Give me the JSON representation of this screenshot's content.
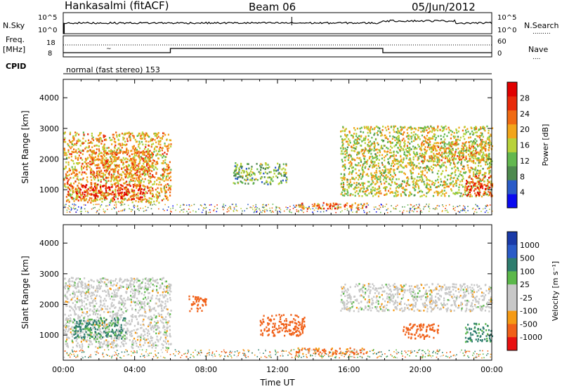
{
  "header": {
    "station": "Hankasalmi (fitACF)",
    "beam": "Beam 06",
    "date": "05/Jun/2012"
  },
  "strip_labels": {
    "nsky": "N.Sky",
    "nsky_ticks": [
      "10^5",
      "10^0"
    ],
    "nsearch": "N.Search",
    "nsearch_ticks": [
      "10^5",
      "10^0"
    ],
    "freq": "Freq.",
    "freq_unit": "[MHz]",
    "freq_ticks": [
      "18",
      "8"
    ],
    "nave": "Nave",
    "nave_ticks": [
      "60",
      "0"
    ],
    "cpid": "CPID",
    "cpid_value": "normal (fast stereo) 153"
  },
  "colors": {
    "power": [
      "#0a0af0",
      "#2a5bc8",
      "#4e8a4e",
      "#63b84f",
      "#b8d23a",
      "#f2a51a",
      "#f06a12",
      "#e82a0a",
      "#e00000"
    ],
    "velocity": [
      "#e81010",
      "#f06018",
      "#f59a14",
      "#f5b82a",
      "#c8c8c8",
      "#c8c8c8",
      "#5bb84a",
      "#2e7d6e",
      "#2a5bc8",
      "#1a3aa8"
    ]
  },
  "chart_data": [
    {
      "type": "heatmap",
      "title": "",
      "xlabel": "",
      "ylabel": "Slant Range [km]",
      "xlim": [
        "00:00",
        "24:00"
      ],
      "x_ticks": [
        "00:00",
        "04:00",
        "08:00",
        "12:00",
        "16:00",
        "20:00",
        "00:00"
      ],
      "ylim": [
        180,
        4600
      ],
      "y_ticks": [
        1000,
        2000,
        3000,
        4000
      ],
      "colorbar_label": "Power [dB]",
      "colorbar_ticks": [
        "4",
        "8",
        "12",
        "16",
        "20",
        "24",
        "28"
      ],
      "echo_regions": [
        {
          "t0": 0.0,
          "t1": 6.0,
          "r0": 600,
          "r1": 2900,
          "level": 20
        },
        {
          "t0": 0.2,
          "t1": 4.5,
          "r0": 700,
          "r1": 1200,
          "level": 28
        },
        {
          "t0": 1.5,
          "t1": 5.0,
          "r0": 1400,
          "r1": 2300,
          "level": 22
        },
        {
          "t0": 9.5,
          "t1": 12.5,
          "r0": 1200,
          "r1": 1900,
          "level": 12
        },
        {
          "t0": 13.0,
          "t1": 17.0,
          "r0": 400,
          "r1": 600,
          "level": 24
        },
        {
          "t0": 15.5,
          "t1": 24.0,
          "r0": 800,
          "r1": 3100,
          "level": 16
        },
        {
          "t0": 20.0,
          "t1": 24.0,
          "r0": 1900,
          "r1": 2600,
          "level": 20
        },
        {
          "t0": 22.5,
          "t1": 24.0,
          "r0": 800,
          "r1": 1500,
          "level": 28
        }
      ]
    },
    {
      "type": "heatmap",
      "title": "",
      "xlabel": "Time UT",
      "ylabel": "Slant Range [km]",
      "xlim": [
        "00:00",
        "24:00"
      ],
      "x_ticks": [
        "00:00",
        "04:00",
        "08:00",
        "12:00",
        "16:00",
        "20:00",
        "00:00"
      ],
      "ylim": [
        180,
        4600
      ],
      "y_ticks": [
        1000,
        2000,
        3000,
        4000
      ],
      "colorbar_label": "Velocity [m s⁻¹]",
      "colorbar_ticks": [
        "1000",
        "500",
        "100",
        "25",
        "-25",
        "-100",
        "-500",
        "-1000"
      ],
      "echo_regions": [
        {
          "t0": 0.0,
          "t1": 6.0,
          "r0": 600,
          "r1": 2900,
          "level": 0
        },
        {
          "t0": 0.5,
          "t1": 3.5,
          "r0": 900,
          "r1": 1600,
          "level": 150
        },
        {
          "t0": 7.0,
          "t1": 8.0,
          "r0": 1800,
          "r1": 2300,
          "level": -300
        },
        {
          "t0": 11.0,
          "t1": 13.5,
          "r0": 1000,
          "r1": 1700,
          "level": -300
        },
        {
          "t0": 13.0,
          "t1": 17.0,
          "r0": 400,
          "r1": 600,
          "level": -150
        },
        {
          "t0": 15.5,
          "t1": 24.0,
          "r0": 1800,
          "r1": 2700,
          "level": 0
        },
        {
          "t0": 19.0,
          "t1": 21.0,
          "r0": 900,
          "r1": 1400,
          "level": -300
        },
        {
          "t0": 22.5,
          "t1": 24.0,
          "r0": 800,
          "r1": 1400,
          "level": 150
        }
      ]
    }
  ]
}
